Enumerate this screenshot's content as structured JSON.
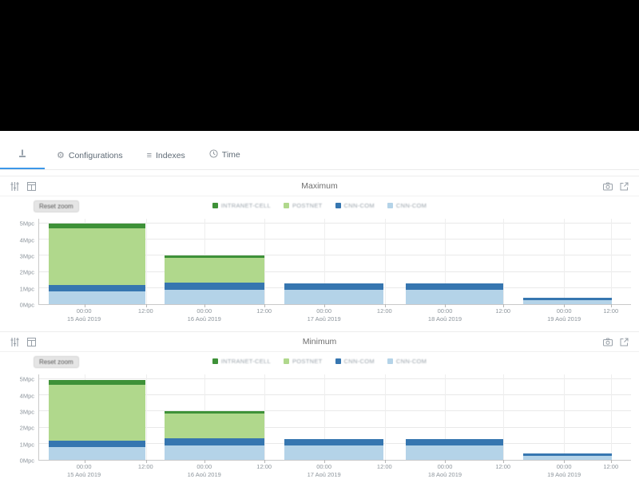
{
  "tabbar": {
    "tabs": [
      {
        "label": "Configurations",
        "icon": "gear"
      },
      {
        "label": "Indexes",
        "icon": "list"
      },
      {
        "label": "Time",
        "icon": "clock"
      }
    ]
  },
  "controls": {
    "reset_zoom_label": "Reset zoom"
  },
  "chart_data": [
    {
      "type": "bar",
      "stacked": true,
      "title": "Maximum",
      "unit": "Mpc",
      "ylim": [
        0,
        5.3
      ],
      "grid": true,
      "legend_position": "top-center",
      "yticks": [
        {
          "value": 0,
          "label": "0Mpc"
        },
        {
          "value": 1,
          "label": "1Mpc"
        },
        {
          "value": 2,
          "label": "2Mpc"
        },
        {
          "value": 3,
          "label": "3Mpc"
        },
        {
          "value": 4,
          "label": "4Mpc"
        },
        {
          "value": 5,
          "label": "5Mpc"
        }
      ],
      "xticks": [
        {
          "pos_pct": 7.7,
          "time": "00:00",
          "date": "15 Aoû 2019"
        },
        {
          "pos_pct": 18.1,
          "time": "12:00",
          "date": ""
        },
        {
          "pos_pct": 28.0,
          "time": "00:00",
          "date": "16 Aoû 2019"
        },
        {
          "pos_pct": 38.1,
          "time": "12:00",
          "date": ""
        },
        {
          "pos_pct": 48.2,
          "time": "00:00",
          "date": "17 Aoû 2019"
        },
        {
          "pos_pct": 58.4,
          "time": "12:00",
          "date": ""
        },
        {
          "pos_pct": 68.6,
          "time": "00:00",
          "date": "18 Aoû 2019"
        },
        {
          "pos_pct": 78.4,
          "time": "12:00",
          "date": ""
        },
        {
          "pos_pct": 88.7,
          "time": "00:00",
          "date": "19 Aoû 2019"
        },
        {
          "pos_pct": 96.6,
          "time": "12:00",
          "date": ""
        }
      ],
      "bars": [
        {
          "x_pct": 1.6,
          "w_pct": 16.3
        },
        {
          "x_pct": 21.2,
          "w_pct": 16.8
        },
        {
          "x_pct": 41.4,
          "w_pct": 16.8
        },
        {
          "x_pct": 62.0,
          "w_pct": 16.4
        },
        {
          "x_pct": 81.8,
          "w_pct": 15.0
        }
      ],
      "series": [
        {
          "name": "INTRANET-CELL",
          "color": "#3e9138",
          "values": [
            0.3,
            0.15,
            0,
            0,
            0
          ]
        },
        {
          "name": "POSTNET",
          "color": "#b0d88c",
          "values": [
            3.5,
            1.5,
            0,
            0,
            0
          ]
        },
        {
          "name": "CNN-COM",
          "color": "#3676b0",
          "values": [
            0.4,
            0.45,
            0.4,
            0.4,
            0.15
          ]
        },
        {
          "name": "CNN-COM",
          "color": "#b4d3e8",
          "values": [
            0.8,
            0.9,
            0.9,
            0.9,
            0.25
          ]
        }
      ]
    },
    {
      "type": "bar",
      "stacked": true,
      "title": "Minimum",
      "unit": "Mpc",
      "ylim": [
        0,
        5.3
      ],
      "grid": true,
      "legend_position": "top-center",
      "yticks": [
        {
          "value": 0,
          "label": "0Mpc"
        },
        {
          "value": 1,
          "label": "1Mpc"
        },
        {
          "value": 2,
          "label": "2Mpc"
        },
        {
          "value": 3,
          "label": "3Mpc"
        },
        {
          "value": 4,
          "label": "4Mpc"
        },
        {
          "value": 5,
          "label": "5Mpc"
        }
      ],
      "xticks": [
        {
          "pos_pct": 7.7,
          "time": "00:00",
          "date": "15 Aoû 2019"
        },
        {
          "pos_pct": 18.1,
          "time": "12:00",
          "date": ""
        },
        {
          "pos_pct": 28.0,
          "time": "00:00",
          "date": "16 Aoû 2019"
        },
        {
          "pos_pct": 38.1,
          "time": "12:00",
          "date": ""
        },
        {
          "pos_pct": 48.2,
          "time": "00:00",
          "date": "17 Aoû 2019"
        },
        {
          "pos_pct": 58.4,
          "time": "12:00",
          "date": ""
        },
        {
          "pos_pct": 68.6,
          "time": "00:00",
          "date": "18 Aoû 2019"
        },
        {
          "pos_pct": 78.4,
          "time": "12:00",
          "date": ""
        },
        {
          "pos_pct": 88.7,
          "time": "00:00",
          "date": "19 Aoû 2019"
        },
        {
          "pos_pct": 96.6,
          "time": "12:00",
          "date": ""
        }
      ],
      "bars": [
        {
          "x_pct": 1.6,
          "w_pct": 16.3
        },
        {
          "x_pct": 21.2,
          "w_pct": 16.8
        },
        {
          "x_pct": 41.4,
          "w_pct": 16.8
        },
        {
          "x_pct": 62.0,
          "w_pct": 16.4
        },
        {
          "x_pct": 81.8,
          "w_pct": 15.0
        }
      ],
      "series": [
        {
          "name": "INTRANET-CELL",
          "color": "#3e9138",
          "values": [
            0.3,
            0.15,
            0,
            0,
            0
          ]
        },
        {
          "name": "POSTNET",
          "color": "#b0d88c",
          "values": [
            3.45,
            1.5,
            0,
            0,
            0
          ]
        },
        {
          "name": "CNN-COM",
          "color": "#3676b0",
          "values": [
            0.4,
            0.45,
            0.4,
            0.4,
            0.15
          ]
        },
        {
          "name": "CNN-COM",
          "color": "#b4d3e8",
          "values": [
            0.8,
            0.9,
            0.9,
            0.9,
            0.25
          ]
        }
      ]
    }
  ]
}
